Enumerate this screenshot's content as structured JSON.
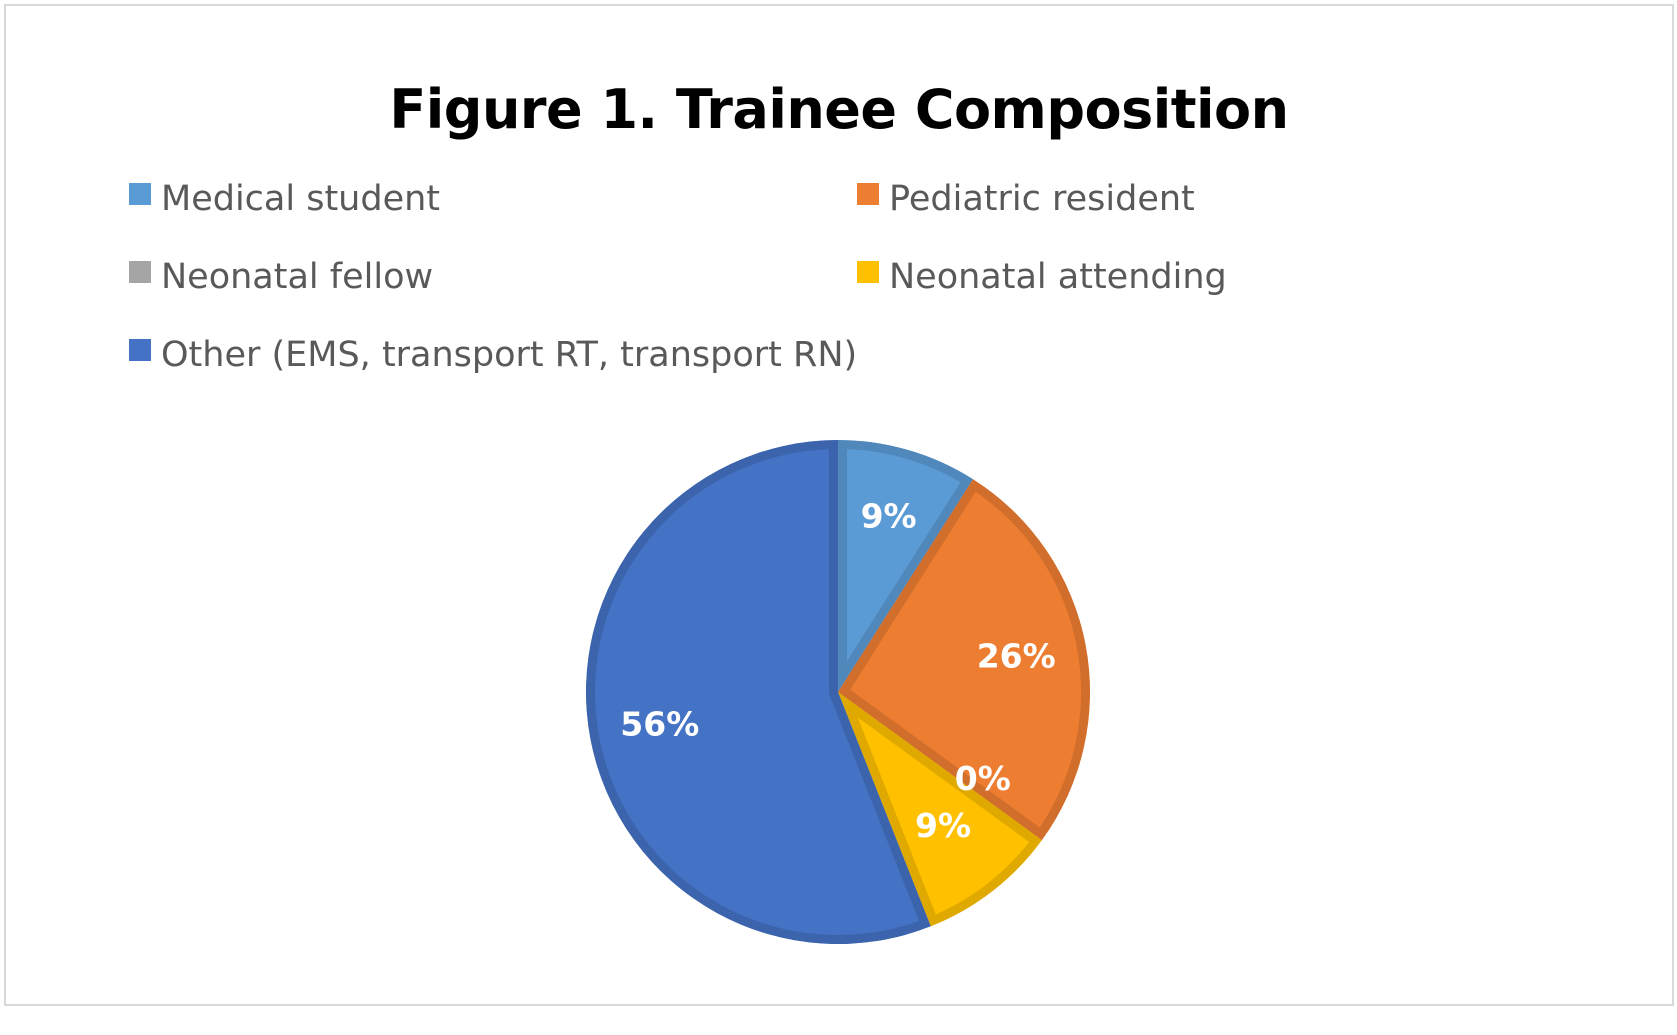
{
  "chart_data": {
    "type": "pie",
    "title": "Figure 1. Trainee Composition",
    "legend_position": "top",
    "series": [
      {
        "name": "Medical student",
        "value": 9,
        "label": "9%",
        "color": "#5B9BD5"
      },
      {
        "name": "Pediatric resident",
        "value": 26,
        "label": "26%",
        "color": "#ED7D31"
      },
      {
        "name": "Neonatal fellow",
        "value": 0,
        "label": "0%",
        "color": "#A5A5A5"
      },
      {
        "name": "Neonatal attending",
        "value": 9,
        "label": "9%",
        "color": "#FFC000"
      },
      {
        "name": "Other (EMS, transport RT, transport RN)",
        "value": 56,
        "label": "56%",
        "color": "#4472C4"
      }
    ]
  },
  "colors": {
    "border": "#d9d9d9",
    "legend_text": "#595959",
    "title_text": "#000000",
    "data_label_text": "#ffffff"
  }
}
